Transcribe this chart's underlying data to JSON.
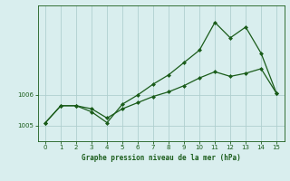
{
  "xlabel": "Graphe pression niveau de la mer (hPa)",
  "xlim": [
    -0.5,
    15.5
  ],
  "ylim": [
    1004.5,
    1008.9
  ],
  "yticks": [
    1005,
    1006
  ],
  "xticks": [
    0,
    1,
    2,
    3,
    4,
    5,
    6,
    7,
    8,
    9,
    10,
    11,
    12,
    13,
    14,
    15
  ],
  "bg_color": "#d9eeee",
  "line_color": "#1a5c1a",
  "grid_color": "#b0cfcf",
  "series1_x": [
    0,
    1,
    2,
    3,
    4,
    5,
    6,
    7,
    8,
    9,
    10,
    11,
    12,
    13,
    14,
    15
  ],
  "series1_y": [
    1005.1,
    1005.65,
    1005.65,
    1005.55,
    1005.25,
    1005.55,
    1005.75,
    1005.95,
    1006.1,
    1006.3,
    1006.55,
    1006.75,
    1006.6,
    1006.7,
    1006.85,
    1006.05
  ],
  "series2_x": [
    0,
    1,
    2,
    3,
    4,
    5,
    6,
    7,
    8,
    9,
    10,
    11,
    12,
    13,
    14,
    15
  ],
  "series2_y": [
    1005.1,
    1005.65,
    1005.65,
    1005.45,
    1005.1,
    1005.7,
    1006.0,
    1006.35,
    1006.65,
    1007.05,
    1007.45,
    1008.35,
    1007.85,
    1008.2,
    1007.35,
    1006.05
  ]
}
